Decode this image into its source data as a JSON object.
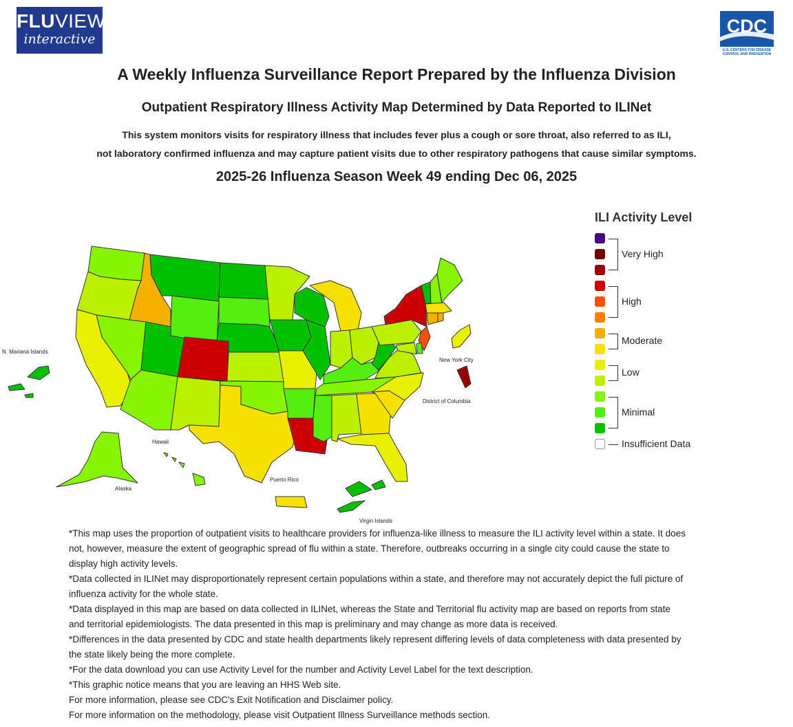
{
  "header": {
    "fluview_logo_top_bold": "FLU",
    "fluview_logo_top_rest": "VIEW",
    "fluview_logo_bottom": "interactive",
    "cdc_logo_text": "CDC",
    "cdc_logo_subtext_1": "U.S. CENTERS FOR DISEASE",
    "cdc_logo_subtext_2": "CONTROL AND PREVENTION"
  },
  "titles": {
    "main": "A Weekly Influenza Surveillance Report Prepared by the Influenza Division",
    "sub": "Outpatient Respiratory Illness Activity Map Determined by Data Reported to ILINet",
    "desc_line1": "This system monitors visits for respiratory illness that includes fever plus a cough or sore throat, also referred to as ILI,",
    "desc_line2": "not laboratory confirmed influenza and may capture patient visits due to other respiratory pathogens that cause similar symptoms.",
    "season": "2025-26 Influenza Season Week 49 ending Dec 06, 2025"
  },
  "map": {
    "labels": {
      "mariana": "N. Mariana Islands",
      "nyc": "New York City",
      "dc": "District of Columbia",
      "hawaii": "Hawaii",
      "alaska": "Alaska",
      "puerto_rico": "Puerto Rico",
      "virgin_islands": "Virgin Islands"
    },
    "level_colors": {
      "1": "#00c000",
      "2": "#55ee11",
      "3": "#88f500",
      "4": "#bbf000",
      "5": "#e8f000",
      "6": "#f5e000",
      "7": "#f5b000",
      "8": "#ff8000",
      "9": "#ff5000",
      "10": "#cc0000",
      "11": "#990000",
      "12": "#700000",
      "13": "#4b0082"
    },
    "states": {
      "WA": 3,
      "OR": 4,
      "CA": 5,
      "ID": 7,
      "NV": 3,
      "UT": 1,
      "AZ": 3,
      "MT": 1,
      "WY": 2,
      "CO": 10,
      "NM": 4,
      "ND": 1,
      "SD": 2,
      "NE": 1,
      "KS": 4,
      "OK": 3,
      "TX": 6,
      "MN": 4,
      "IA": 1,
      "MO": 5,
      "AR": 2,
      "LA": 10,
      "WI": 1,
      "IL": 1,
      "MI": 6,
      "IN": 4,
      "OH": 4,
      "KY": 2,
      "TN": 3,
      "MS": 2,
      "AL": 4,
      "GA": 6,
      "FL": 5,
      "SC": 6,
      "NC": 5,
      "VA": 4,
      "WV": 1,
      "PA": 4,
      "NY": 10,
      "VT": 1,
      "NH": 3,
      "ME": 3,
      "MA": 6,
      "RI": 7,
      "CT": 7,
      "NJ": 9,
      "DE": 2,
      "MD": 4,
      "AK": 3,
      "HI": 3,
      "PR": 6,
      "VI": 1,
      "MP": 1,
      "NYC": 11,
      "DC": 5
    }
  },
  "legend": {
    "title": "ILI Activity Level",
    "groups": [
      {
        "label": "Very High"
      },
      {
        "label": "High"
      },
      {
        "label": "Moderate"
      },
      {
        "label": "Low"
      },
      {
        "label": "Minimal"
      },
      {
        "label": "Insufficient Data"
      }
    ],
    "swatch_colors": [
      "#4b0082",
      "#700000",
      "#990000",
      "#cc0000",
      "#ff5000",
      "#ff8000",
      "#f5b000",
      "#f5e000",
      "#e8f000",
      "#bbf000",
      "#88f500",
      "#55ee11",
      "#00c000",
      "#ffffff"
    ]
  },
  "notes": [
    "*This map uses the proportion of outpatient visits to healthcare providers for influenza-like illness to measure the ILI activity level within a state. It does not, however, measure the extent of geographic spread of flu within a state. Therefore, outbreaks occurring in a single city could cause the state to display high activity levels.",
    "*Data collected in ILINet may disproportionately represent certain populations within a state, and therefore may not accurately depict the full picture of influenza activity for the whole state.",
    "*Data displayed in this map are based on data collected in ILINet, whereas the State and Territorial flu activity map are based on reports from state and territorial epidemiologists. The data presented in this map is preliminary and may change as more data is received.",
    "*Differences in the data presented by CDC and state health departments likely represent differing levels of data completeness with data presented by the state likely being the more complete.",
    "*For the data download you can use Activity Level for the number and Activity Level Label for the text description.",
    "*This graphic notice means that you are leaving an HHS Web site.",
    "For more information, please see CDC's Exit Notification and Disclaimer policy.",
    "For more information on the methodology, please visit Outpatient Illness Surveillance methods section."
  ]
}
